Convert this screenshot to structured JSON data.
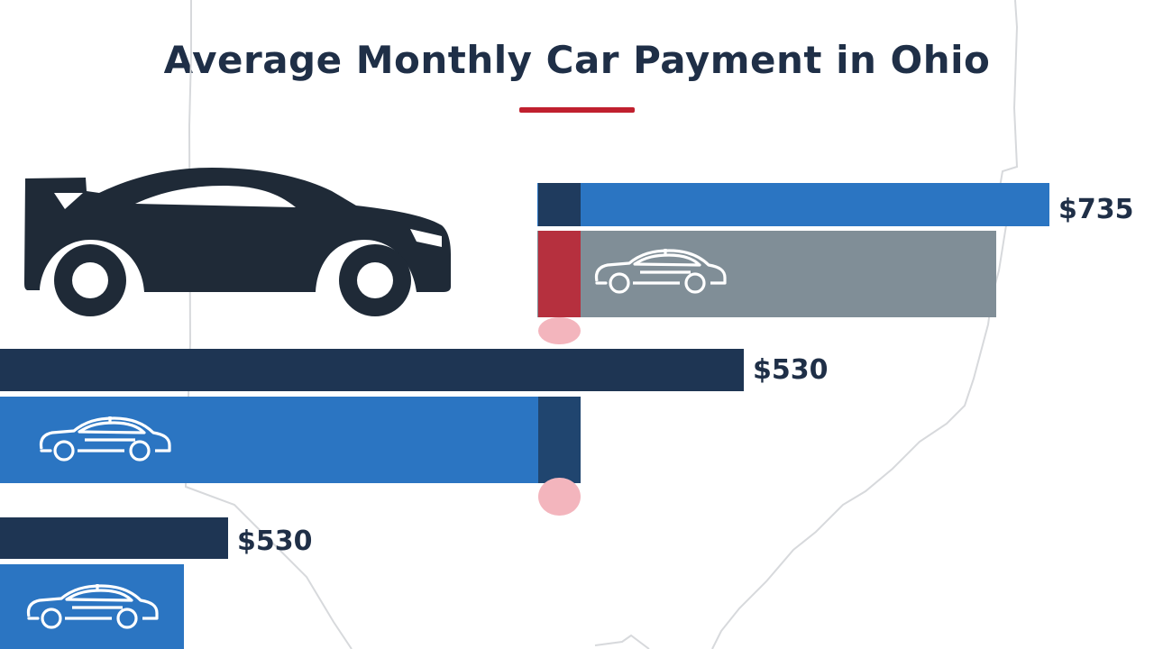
{
  "colors": {
    "navy": "#1e3553",
    "blue": "#2b75c2",
    "gray": "#808e97",
    "red": "#c0202e",
    "title": "#1f2f47",
    "map": "#d7d9dc",
    "car": "#1f2a37"
  },
  "icons": {
    "hero": "sports-car-icon",
    "bar": "sedan-outline-icon"
  },
  "chart_data": {
    "type": "bar",
    "orientation": "horizontal",
    "title": "Average Monthly Car Payment in Ohio",
    "xlabel": "",
    "ylabel": "",
    "grid": false,
    "legend": "none",
    "value_labels": [
      "$735",
      "$530",
      "$530"
    ],
    "series": [
      {
        "values": [
          735,
          530,
          530
        ]
      },
      {
        "values": [
          null,
          null,
          null
        ]
      }
    ]
  }
}
